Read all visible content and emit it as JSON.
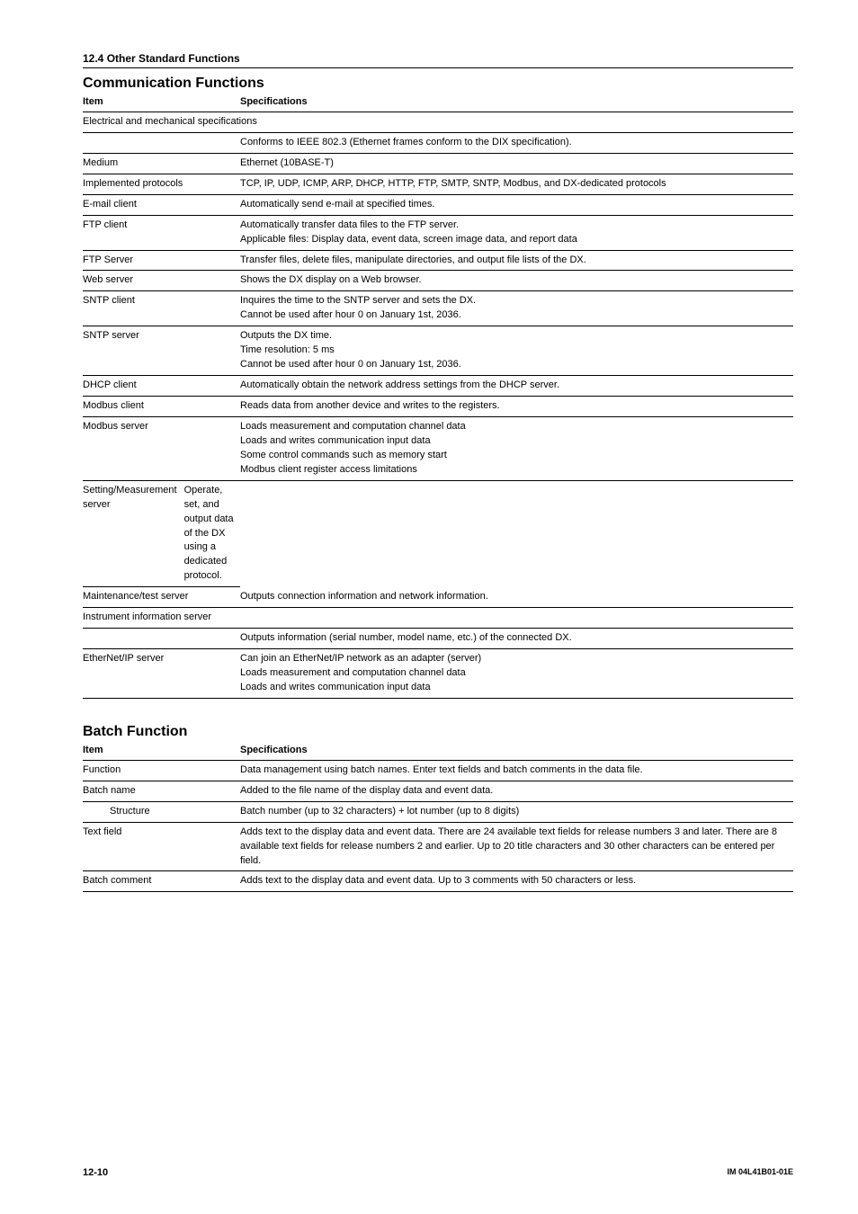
{
  "page": {
    "header": "12.4  Other Standard Functions",
    "number": "12-10",
    "doc_id": "IM 04L41B01-01E"
  },
  "comm": {
    "title": "Communication Functions",
    "columns": {
      "item": "Item",
      "spec": "Specifications"
    },
    "rows": [
      {
        "item": "Electrical and mechanical specifications",
        "spec": "Conforms to IEEE 802.3 (Ethernet frames conform to the DIX specification).",
        "span_item": true
      },
      {
        "item": "Medium",
        "spec": "Ethernet (10BASE-T)"
      },
      {
        "item": "Implemented protocols",
        "spec": "TCP, IP, UDP, ICMP, ARP, DHCP, HTTP, FTP, SMTP, SNTP, Modbus, and DX-dedicated protocols"
      },
      {
        "item": "E-mail client",
        "spec": "Automatically send e-mail at specified times."
      },
      {
        "item": "FTP client",
        "spec_lines": [
          "Automatically transfer data files to the FTP server.",
          "Applicable files: Display data, event data, screen image data, and report data"
        ]
      },
      {
        "item": "FTP Server",
        "spec": "Transfer files, delete files, manipulate directories, and output file lists of the DX."
      },
      {
        "item": "Web server",
        "spec": "Shows the DX display on a Web browser."
      },
      {
        "item": "SNTP client",
        "spec_lines": [
          "Inquires the time to the SNTP server and sets the DX.",
          "Cannot be used after hour 0 on January 1st, 2036."
        ]
      },
      {
        "item": "SNTP server",
        "spec_lines": [
          "Outputs the DX time.",
          "Time resolution: 5 ms",
          "Cannot be used after hour 0 on January 1st, 2036."
        ]
      },
      {
        "item": "DHCP client",
        "spec": "Automatically obtain the network address settings from the DHCP server."
      },
      {
        "item": "Modbus client",
        "spec": "Reads data from another device and writes to the registers."
      },
      {
        "item": "Modbus server",
        "spec_lines": [
          "Loads measurement and computation channel data",
          "Loads and writes communication input data",
          "Some control commands such as memory start",
          "Modbus client register access limitations"
        ]
      },
      {
        "item": "Setting/Measurement server",
        "spec": "Operate, set, and output data of the DX using a dedicated protocol.",
        "tight": true
      },
      {
        "item": "Maintenance/test server",
        "spec": "Outputs connection information and network information."
      },
      {
        "item": "Instrument information server",
        "spec": "Outputs information (serial number, model name, etc.) of the connected DX.",
        "span_item": true
      },
      {
        "item": "EtherNet/IP server",
        "spec_lines": [
          "Can join an EtherNet/IP network as an adapter (server)",
          "Loads measurement and computation channel data",
          "Loads and writes communication input data"
        ]
      }
    ]
  },
  "batch": {
    "title": "Batch Function",
    "columns": {
      "item": "Item",
      "spec": "Specifications"
    },
    "rows": [
      {
        "item": "Function",
        "spec": "Data management using batch names. Enter text fields and batch comments in the data file."
      },
      {
        "item": "Batch name",
        "spec": "Added to the file name of the display data and event data.",
        "sub": {
          "label": "Structure",
          "spec": "Batch number (up to 32 characters) + lot number (up to 8 digits)"
        }
      },
      {
        "item": "Text field",
        "spec": "Adds text to the display data and event data. There are 24 available text fields for release numbers 3 and later. There are 8 available text fields for release numbers 2 and earlier. Up to 20 title characters and 30 other characters can be entered per field."
      },
      {
        "item": "Batch comment",
        "spec": "Adds text to the display data and event data. Up to 3 comments with 50 characters or less."
      }
    ]
  }
}
